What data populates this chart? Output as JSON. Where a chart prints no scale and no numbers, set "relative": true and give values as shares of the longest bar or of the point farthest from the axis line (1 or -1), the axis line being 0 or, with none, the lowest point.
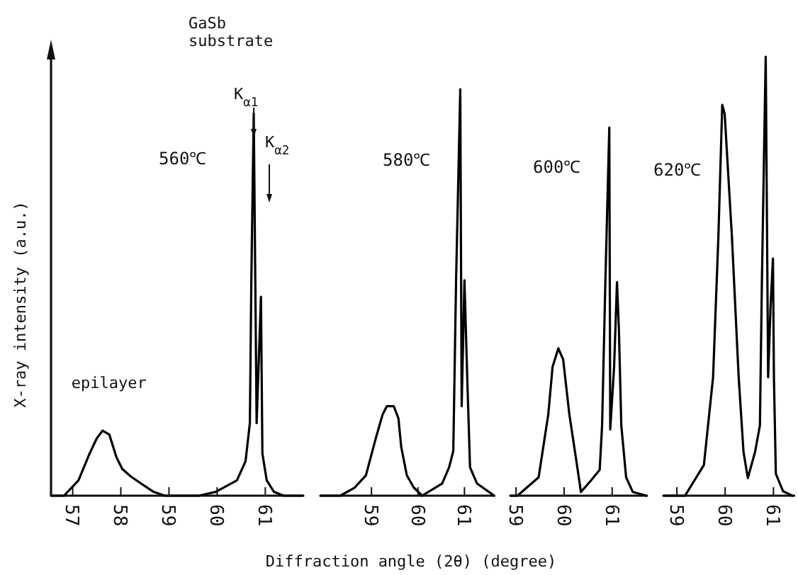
{
  "chart_data": [
    {
      "type": "line",
      "title": "560℃",
      "ylabel": "X-ray intensity (a.u.)",
      "xlabel": "Diffraction angle (2θ) (degree)",
      "relative": true,
      "xlim": [
        56.55,
        61.79
      ],
      "xticks": [
        57,
        58,
        59,
        60,
        61
      ],
      "color": "#000000",
      "x": [
        56.55,
        56.82,
        57.12,
        57.35,
        57.5,
        57.62,
        57.76,
        57.91,
        58.03,
        58.21,
        58.44,
        58.68,
        58.91,
        59.62,
        59.97,
        60.41,
        60.59,
        60.68,
        60.71,
        60.76,
        60.82,
        60.91,
        60.94,
        61.03,
        61.18,
        61.38,
        61.79
      ],
      "values": [
        0,
        0,
        0.04,
        0.11,
        0.15,
        0.17,
        0.16,
        0.1,
        0.07,
        0.05,
        0.03,
        0.01,
        0,
        0,
        0.01,
        0.04,
        0.09,
        0.19,
        0.56,
        1,
        0.19,
        0.52,
        0.11,
        0.04,
        0.01,
        0,
        0
      ],
      "annotations": [
        "GaSb substrate",
        {
          "text": "K$_{α1}$",
          "x": 60.76,
          "y": 1
        },
        "K$_{α2}$",
        {
          "text": "epilayer",
          "x": 57.62,
          "y": 0.17
        }
      ]
    },
    {
      "type": "line",
      "title": "580℃",
      "relative": true,
      "xlim": [
        57.9,
        61.65
      ],
      "xticks": [
        59,
        60,
        61
      ],
      "color": "#000000",
      "x": [
        57.9,
        58.33,
        58.64,
        58.88,
        59.09,
        59.24,
        59.33,
        59.48,
        59.58,
        59.64,
        59.76,
        59.91,
        60.09,
        60.52,
        60.67,
        60.76,
        60.82,
        60.91,
        60.94,
        61.0,
        61.06,
        61.12,
        61.27,
        61.64
      ],
      "values": [
        0,
        0,
        0.02,
        0.05,
        0.14,
        0.2,
        0.22,
        0.22,
        0.19,
        0.12,
        0.05,
        0.02,
        0,
        0.03,
        0.07,
        0.11,
        0.53,
        1,
        0.22,
        0.53,
        0.29,
        0.07,
        0.03,
        0
      ]
    },
    {
      "type": "line",
      "title": "600℃",
      "relative": true,
      "xlim": [
        58.88,
        61.74
      ],
      "xticks": [
        59,
        60,
        61
      ],
      "color": "#000000",
      "x": [
        58.88,
        59.03,
        59.47,
        59.67,
        59.76,
        59.88,
        59.98,
        60.11,
        60.26,
        60.35,
        60.55,
        60.74,
        60.79,
        60.86,
        60.94,
        60.96,
        61.04,
        61.1,
        61.14,
        61.19,
        61.29,
        61.43,
        61.71
      ],
      "values": [
        0,
        0,
        0.05,
        0.22,
        0.35,
        0.4,
        0.37,
        0.22,
        0.09,
        0.01,
        0.04,
        0.07,
        0.19,
        0.59,
        1,
        0.18,
        0.35,
        0.58,
        0.45,
        0.19,
        0.05,
        0.01,
        0
      ]
    },
    {
      "type": "line",
      "title": "620℃",
      "relative": true,
      "xlim": [
        58.72,
        61.45
      ],
      "xticks": [
        59,
        60,
        61
      ],
      "color": "#000000",
      "x": [
        58.72,
        59.17,
        59.56,
        59.75,
        59.86,
        59.94,
        59.99,
        60.14,
        60.28,
        60.38,
        60.47,
        60.62,
        60.72,
        60.76,
        60.81,
        60.84,
        60.89,
        60.94,
        60.99,
        61.01,
        61.05,
        61.2,
        61.39
      ],
      "values": [
        0,
        0,
        0.07,
        0.27,
        0.59,
        0.89,
        0.87,
        0.59,
        0.27,
        0.1,
        0.04,
        0.1,
        0.16,
        0.48,
        0.81,
        1,
        0.27,
        0.43,
        0.54,
        0.27,
        0.05,
        0.01,
        0
      ]
    }
  ]
}
